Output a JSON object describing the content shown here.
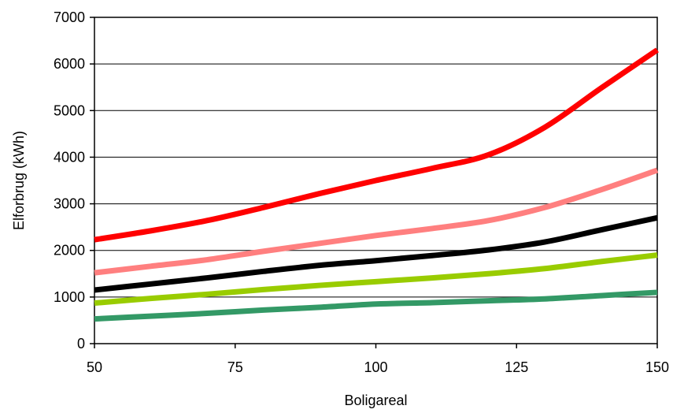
{
  "chart_data": {
    "type": "line",
    "title": "",
    "xlabel": "Boligareal",
    "ylabel": "Elforbrug (kWh)",
    "xlim": [
      50,
      150
    ],
    "ylim": [
      0,
      7000
    ],
    "x_ticks": [
      "50",
      "75",
      "100",
      "125",
      "150"
    ],
    "y_ticks": [
      "0",
      "1000",
      "2000",
      "3000",
      "4000",
      "5000",
      "6000",
      "7000"
    ],
    "grid": "horizontal",
    "legend": "none",
    "series": [
      {
        "color": "#ff0000",
        "x": [
          50,
          60,
          70,
          80,
          90,
          100,
          110,
          120,
          130,
          140,
          150
        ],
        "values": [
          2230,
          2420,
          2640,
          2920,
          3220,
          3500,
          3760,
          4050,
          4640,
          5480,
          6300
        ]
      },
      {
        "color": "#ff7f7f",
        "x": [
          50,
          60,
          70,
          80,
          90,
          100,
          110,
          120,
          130,
          140,
          150
        ],
        "values": [
          1520,
          1660,
          1800,
          1980,
          2150,
          2320,
          2470,
          2640,
          2920,
          3300,
          3720
        ]
      },
      {
        "color": "#000000",
        "x": [
          50,
          60,
          70,
          80,
          90,
          100,
          110,
          120,
          130,
          140,
          150
        ],
        "values": [
          1150,
          1280,
          1410,
          1550,
          1680,
          1780,
          1890,
          2010,
          2180,
          2440,
          2700
        ]
      },
      {
        "color": "#99cc00",
        "x": [
          50,
          60,
          70,
          80,
          90,
          100,
          110,
          120,
          130,
          140,
          150
        ],
        "values": [
          870,
          970,
          1060,
          1160,
          1250,
          1330,
          1410,
          1500,
          1610,
          1760,
          1900
        ]
      },
      {
        "color": "#339966",
        "x": [
          50,
          60,
          70,
          80,
          90,
          100,
          110,
          120,
          130,
          140,
          150
        ],
        "values": [
          530,
          590,
          650,
          720,
          780,
          850,
          880,
          920,
          960,
          1030,
          1100
        ]
      }
    ]
  }
}
